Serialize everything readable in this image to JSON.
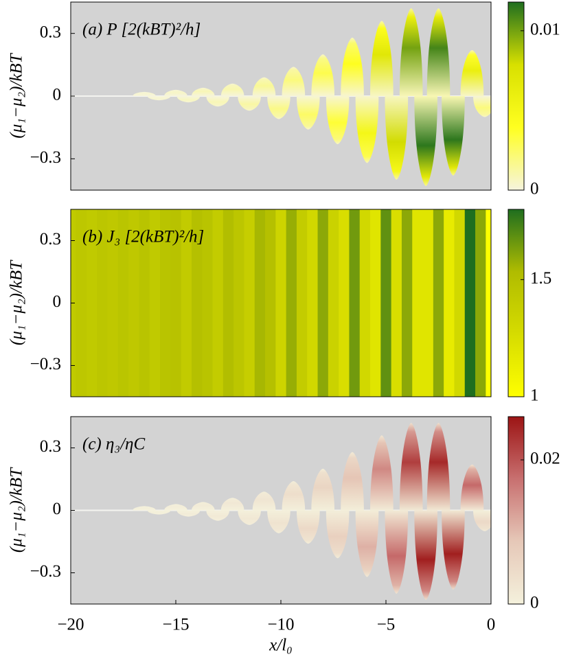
{
  "chart_data": [
    {
      "type": "heatmap",
      "panel_label": "(a) P [2(kBT)²/h]",
      "ylabel": "(μ₁−μ₂)/kBT",
      "xlim": [
        -20,
        0
      ],
      "ylim": [
        -0.45,
        0.45
      ],
      "yticks": [
        0.3,
        0,
        {
          "value": -0.3,
          "label": "−0.3"
        }
      ],
      "clim": [
        0,
        0.0118
      ],
      "cticks": [
        0,
        0.01
      ],
      "colormap": [
        "#f6f4de",
        "#ffff20",
        "#d8e000",
        "#1f6e1f"
      ],
      "lobes": [
        {
          "x": -16.5,
          "height": 0.02,
          "peak": 0.0003
        },
        {
          "x": -15.8,
          "height": -0.02,
          "peak": 0.0003
        },
        {
          "x": -15.0,
          "height": 0.03,
          "peak": 0.0005
        },
        {
          "x": -14.4,
          "height": -0.03,
          "peak": 0.0006
        },
        {
          "x": -13.7,
          "height": 0.04,
          "peak": 0.0008
        },
        {
          "x": -13.0,
          "height": -0.05,
          "peak": 0.0008
        },
        {
          "x": -12.3,
          "height": 0.06,
          "peak": 0.001
        },
        {
          "x": -11.5,
          "height": -0.07,
          "peak": 0.0012
        },
        {
          "x": -10.8,
          "height": 0.09,
          "peak": 0.0015
        },
        {
          "x": -10.1,
          "height": -0.11,
          "peak": 0.0018
        },
        {
          "x": -9.4,
          "height": 0.14,
          "peak": 0.002
        },
        {
          "x": -8.7,
          "height": -0.16,
          "peak": 0.0025
        },
        {
          "x": -8.0,
          "height": 0.2,
          "peak": 0.003
        },
        {
          "x": -7.3,
          "height": -0.23,
          "peak": 0.0035
        },
        {
          "x": -6.6,
          "height": 0.28,
          "peak": 0.004
        },
        {
          "x": -5.9,
          "height": -0.32,
          "peak": 0.005
        },
        {
          "x": -5.2,
          "height": 0.36,
          "peak": 0.007
        },
        {
          "x": -4.5,
          "height": -0.4,
          "peak": 0.008
        },
        {
          "x": -3.8,
          "height": 0.42,
          "peak": 0.01
        },
        {
          "x": -3.1,
          "height": -0.43,
          "peak": 0.0115
        },
        {
          "x": -2.5,
          "height": 0.42,
          "peak": 0.011
        },
        {
          "x": -1.8,
          "height": -0.38,
          "peak": 0.0115
        },
        {
          "x": -0.9,
          "height": 0.22,
          "peak": 0.006
        },
        {
          "x": -0.3,
          "height": -0.1,
          "peak": 0.002
        }
      ]
    },
    {
      "type": "stripes",
      "panel_label": "(b) J₃ [2(kBT)²/h]",
      "ylabel": "(μ₁−μ₂)/kBT",
      "xlim": [
        -20,
        0
      ],
      "ylim": [
        -0.45,
        0.45
      ],
      "yticks": [
        0.3,
        0,
        {
          "value": -0.3,
          "label": "−0.3"
        }
      ],
      "clim": [
        1,
        1.8
      ],
      "cticks": [
        1,
        1.5
      ],
      "colormap": [
        "#ffff00",
        "#d6dc00",
        "#b0bc00",
        "#1f6e1f"
      ],
      "x": [
        -20,
        -19.5,
        -19,
        -18.5,
        -18,
        -17.5,
        -17,
        -16.5,
        -16,
        -15.5,
        -15,
        -14.5,
        -14,
        -13.5,
        -13,
        -12.5,
        -12,
        -11.5,
        -11,
        -10.5,
        -10,
        -9.5,
        -9,
        -8.5,
        -8,
        -7.5,
        -7,
        -6.5,
        -6,
        -5.5,
        -5,
        -4.5,
        -4,
        -3.5,
        -3,
        -2.5,
        -2,
        -1.5,
        -1,
        -0.5,
        0
      ],
      "values": [
        1.42,
        1.44,
        1.42,
        1.45,
        1.43,
        1.46,
        1.43,
        1.47,
        1.42,
        1.47,
        1.48,
        1.41,
        1.5,
        1.47,
        1.4,
        1.52,
        1.45,
        1.38,
        1.55,
        1.5,
        1.33,
        1.58,
        1.4,
        1.3,
        1.6,
        1.35,
        1.25,
        1.65,
        1.3,
        1.2,
        1.68,
        1.25,
        1.6,
        1.2,
        1.2,
        1.6,
        1.15,
        1.3,
        1.8,
        1.6,
        1.0
      ]
    },
    {
      "type": "heatmap",
      "panel_label": "(c) η₃/ηC",
      "ylabel": "(μ₁−μ₂)/kBT",
      "xlabel": "x/l₀",
      "xlim": [
        -20,
        0
      ],
      "ylim": [
        -0.45,
        0.45
      ],
      "yticks": [
        0.3,
        0,
        {
          "value": -0.3,
          "label": "−0.3"
        }
      ],
      "xticks": [
        {
          "value": -20,
          "label": "−20"
        },
        {
          "value": -15,
          "label": "−15"
        },
        {
          "value": -10,
          "label": "−10"
        },
        {
          "value": -5,
          "label": "−5"
        },
        0
      ],
      "clim": [
        0,
        0.026
      ],
      "cticks": [
        0,
        0.02
      ],
      "colormap": [
        "#f4f1dc",
        "#e6c8b8",
        "#c87070",
        "#9c1414"
      ],
      "lobes": [
        {
          "x": -16.5,
          "height": 0.02,
          "peak": 0.0005
        },
        {
          "x": -15.8,
          "height": -0.02,
          "peak": 0.0005
        },
        {
          "x": -15.0,
          "height": 0.03,
          "peak": 0.0008
        },
        {
          "x": -14.4,
          "height": -0.03,
          "peak": 0.001
        },
        {
          "x": -13.7,
          "height": 0.04,
          "peak": 0.0012
        },
        {
          "x": -13.0,
          "height": -0.05,
          "peak": 0.0014
        },
        {
          "x": -12.3,
          "height": 0.06,
          "peak": 0.0018
        },
        {
          "x": -11.5,
          "height": -0.07,
          "peak": 0.002
        },
        {
          "x": -10.8,
          "height": 0.09,
          "peak": 0.0025
        },
        {
          "x": -10.1,
          "height": -0.11,
          "peak": 0.003
        },
        {
          "x": -9.4,
          "height": 0.14,
          "peak": 0.004
        },
        {
          "x": -8.7,
          "height": -0.16,
          "peak": 0.005
        },
        {
          "x": -8.0,
          "height": 0.2,
          "peak": 0.006
        },
        {
          "x": -7.3,
          "height": -0.23,
          "peak": 0.007
        },
        {
          "x": -6.6,
          "height": 0.28,
          "peak": 0.009
        },
        {
          "x": -5.9,
          "height": -0.32,
          "peak": 0.011
        },
        {
          "x": -5.2,
          "height": 0.36,
          "peak": 0.015
        },
        {
          "x": -4.5,
          "height": -0.4,
          "peak": 0.018
        },
        {
          "x": -3.8,
          "height": 0.42,
          "peak": 0.022
        },
        {
          "x": -3.1,
          "height": -0.43,
          "peak": 0.025
        },
        {
          "x": -2.5,
          "height": 0.42,
          "peak": 0.024
        },
        {
          "x": -1.8,
          "height": -0.38,
          "peak": 0.025
        },
        {
          "x": -0.9,
          "height": 0.22,
          "peak": 0.018
        },
        {
          "x": -0.3,
          "height": -0.1,
          "peak": 0.005
        }
      ]
    }
  ]
}
